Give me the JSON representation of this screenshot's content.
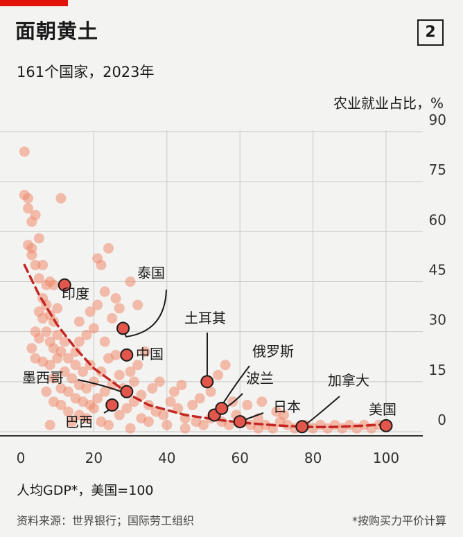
{
  "header": {
    "title": "面朝黄土",
    "badge": "2",
    "subtitle": "161个国家，2023年"
  },
  "footer": {
    "source": "资料来源：世界银行；国际劳工组织",
    "note": "*按购买力平价计算"
  },
  "colors": {
    "dot": "#f08a6e",
    "highlight": "#e2564b",
    "trend": "#c42722",
    "grid": "#c8c8c8",
    "brand": "#e3120b"
  },
  "chart_data": {
    "type": "scatter",
    "xlabel": "人均GDP*，美国=100",
    "ylabel": "农业就业占比，%",
    "xlim": [
      0,
      100
    ],
    "ylim": [
      0,
      90
    ],
    "xticks": [
      0,
      20,
      40,
      60,
      80,
      100
    ],
    "yticks": [
      0,
      15,
      30,
      45,
      60,
      75,
      90
    ],
    "grid": true,
    "y_axis_side": "right",
    "highlighted": [
      {
        "name": "印度",
        "x": 12,
        "y": 44
      },
      {
        "name": "泰国",
        "x": 28,
        "y": 31
      },
      {
        "name": "中国",
        "x": 29,
        "y": 23
      },
      {
        "name": "墨西哥",
        "x": 29,
        "y": 12
      },
      {
        "name": "巴西",
        "x": 25,
        "y": 8
      },
      {
        "name": "土耳其",
        "x": 51,
        "y": 15
      },
      {
        "name": "俄罗斯",
        "x": 53,
        "y": 5
      },
      {
        "name": "波兰",
        "x": 55,
        "y": 7
      },
      {
        "name": "日本",
        "x": 60,
        "y": 3
      },
      {
        "name": "加拿大",
        "x": 77,
        "y": 1.5
      },
      {
        "name": "美国",
        "x": 100,
        "y": 1.8
      }
    ],
    "trend": [
      [
        1,
        50
      ],
      [
        5,
        41
      ],
      [
        10,
        32
      ],
      [
        15,
        25
      ],
      [
        20,
        19
      ],
      [
        25,
        15
      ],
      [
        30,
        11
      ],
      [
        35,
        8
      ],
      [
        40,
        6.5
      ],
      [
        45,
        5
      ],
      [
        50,
        4.2
      ],
      [
        55,
        3.4
      ],
      [
        60,
        2.8
      ],
      [
        65,
        2.3
      ],
      [
        70,
        1.9
      ],
      [
        75,
        1.6
      ],
      [
        80,
        1.4
      ],
      [
        85,
        1.4
      ],
      [
        90,
        1.6
      ],
      [
        95,
        1.9
      ],
      [
        100,
        2.2
      ]
    ],
    "points": [
      [
        1,
        84
      ],
      [
        1,
        71
      ],
      [
        2,
        70
      ],
      [
        2,
        67
      ],
      [
        3,
        63
      ],
      [
        4,
        65
      ],
      [
        2,
        56
      ],
      [
        3,
        55
      ],
      [
        3,
        53
      ],
      [
        5,
        58
      ],
      [
        4,
        50
      ],
      [
        6,
        50
      ],
      [
        5,
        46
      ],
      [
        7,
        44
      ],
      [
        8,
        45
      ],
      [
        9,
        44
      ],
      [
        6,
        40
      ],
      [
        7,
        38
      ],
      [
        5,
        36
      ],
      [
        6,
        34
      ],
      [
        8,
        35
      ],
      [
        9,
        33
      ],
      [
        10,
        37
      ],
      [
        4,
        30
      ],
      [
        5,
        28
      ],
      [
        7,
        30
      ],
      [
        8,
        27
      ],
      [
        9,
        25
      ],
      [
        10,
        29
      ],
      [
        3,
        25
      ],
      [
        4,
        22
      ],
      [
        6,
        21
      ],
      [
        8,
        20
      ],
      [
        10,
        22
      ],
      [
        12,
        27
      ],
      [
        11,
        24
      ],
      [
        13,
        22
      ],
      [
        15,
        24
      ],
      [
        16,
        27
      ],
      [
        18,
        29
      ],
      [
        20,
        31
      ],
      [
        15,
        20
      ],
      [
        17,
        18
      ],
      [
        19,
        20
      ],
      [
        12,
        18
      ],
      [
        14,
        16
      ],
      [
        16,
        14
      ],
      [
        18,
        13
      ],
      [
        20,
        15
      ],
      [
        22,
        18
      ],
      [
        24,
        22
      ],
      [
        23,
        27
      ],
      [
        25,
        34
      ],
      [
        26,
        40
      ],
      [
        27,
        37
      ],
      [
        21,
        52
      ],
      [
        22,
        50
      ],
      [
        24,
        55
      ],
      [
        11,
        70
      ],
      [
        16,
        33
      ],
      [
        19,
        36
      ],
      [
        21,
        38
      ],
      [
        23,
        42
      ],
      [
        30,
        45
      ],
      [
        32,
        38
      ],
      [
        9,
        16
      ],
      [
        11,
        13
      ],
      [
        13,
        12
      ],
      [
        15,
        10
      ],
      [
        17,
        9
      ],
      [
        19,
        8
      ],
      [
        21,
        10
      ],
      [
        23,
        12
      ],
      [
        25,
        14
      ],
      [
        27,
        17
      ],
      [
        7,
        12
      ],
      [
        9,
        9
      ],
      [
        11,
        8
      ],
      [
        13,
        6
      ],
      [
        16,
        5
      ],
      [
        8,
        2
      ],
      [
        18,
        4
      ],
      [
        20,
        7
      ],
      [
        22,
        3
      ],
      [
        24,
        2
      ],
      [
        27,
        5
      ],
      [
        29,
        7
      ],
      [
        31,
        9
      ],
      [
        33,
        11
      ],
      [
        35,
        8
      ],
      [
        37,
        6
      ],
      [
        39,
        5
      ],
      [
        36,
        13
      ],
      [
        38,
        15
      ],
      [
        41,
        9
      ],
      [
        43,
        7
      ],
      [
        45,
        4
      ],
      [
        47,
        8
      ],
      [
        49,
        10
      ],
      [
        52,
        12
      ],
      [
        54,
        17
      ],
      [
        56,
        20
      ],
      [
        58,
        9
      ],
      [
        48,
        3
      ],
      [
        50,
        2
      ],
      [
        52,
        4
      ],
      [
        55,
        3
      ],
      [
        57,
        2
      ],
      [
        59,
        5
      ],
      [
        61,
        3
      ],
      [
        63,
        2
      ],
      [
        65,
        4
      ],
      [
        67,
        2
      ],
      [
        69,
        1
      ],
      [
        71,
        3
      ],
      [
        73,
        2
      ],
      [
        75,
        1
      ],
      [
        78,
        2
      ],
      [
        80,
        1
      ],
      [
        82,
        2
      ],
      [
        84,
        1
      ],
      [
        86,
        2
      ],
      [
        88,
        1
      ],
      [
        90,
        2
      ],
      [
        92,
        1
      ],
      [
        94,
        2
      ],
      [
        96,
        1
      ],
      [
        98,
        2
      ],
      [
        62,
        8
      ],
      [
        66,
        9
      ],
      [
        70,
        6
      ],
      [
        45,
        1
      ],
      [
        40,
        2
      ],
      [
        35,
        3
      ],
      [
        30,
        1
      ],
      [
        42,
        12
      ],
      [
        44,
        14
      ],
      [
        34,
        24
      ],
      [
        32,
        20
      ],
      [
        30,
        18
      ],
      [
        26,
        23
      ],
      [
        28,
        13
      ],
      [
        31,
        15
      ],
      [
        33,
        4
      ],
      [
        14,
        3
      ],
      [
        65,
        1
      ],
      [
        72,
        5
      ]
    ]
  }
}
